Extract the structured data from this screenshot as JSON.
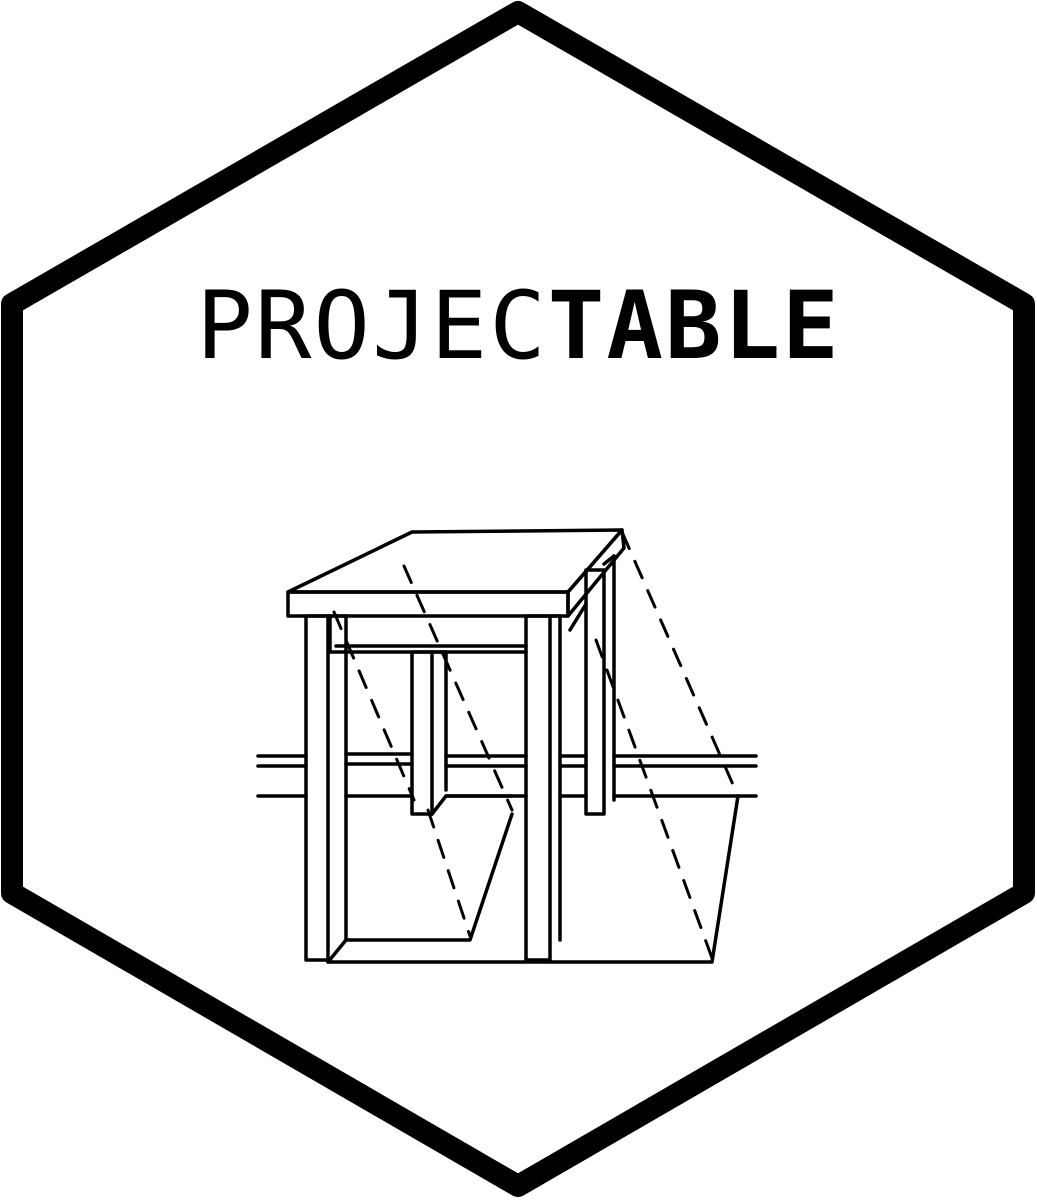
{
  "logo": {
    "title_light": "PROJEC",
    "title_bold": "TABLE",
    "border_color": "#000000",
    "background_color": "#ffffff"
  },
  "illustration": {
    "icon": "table-projection-sketch-icon"
  }
}
